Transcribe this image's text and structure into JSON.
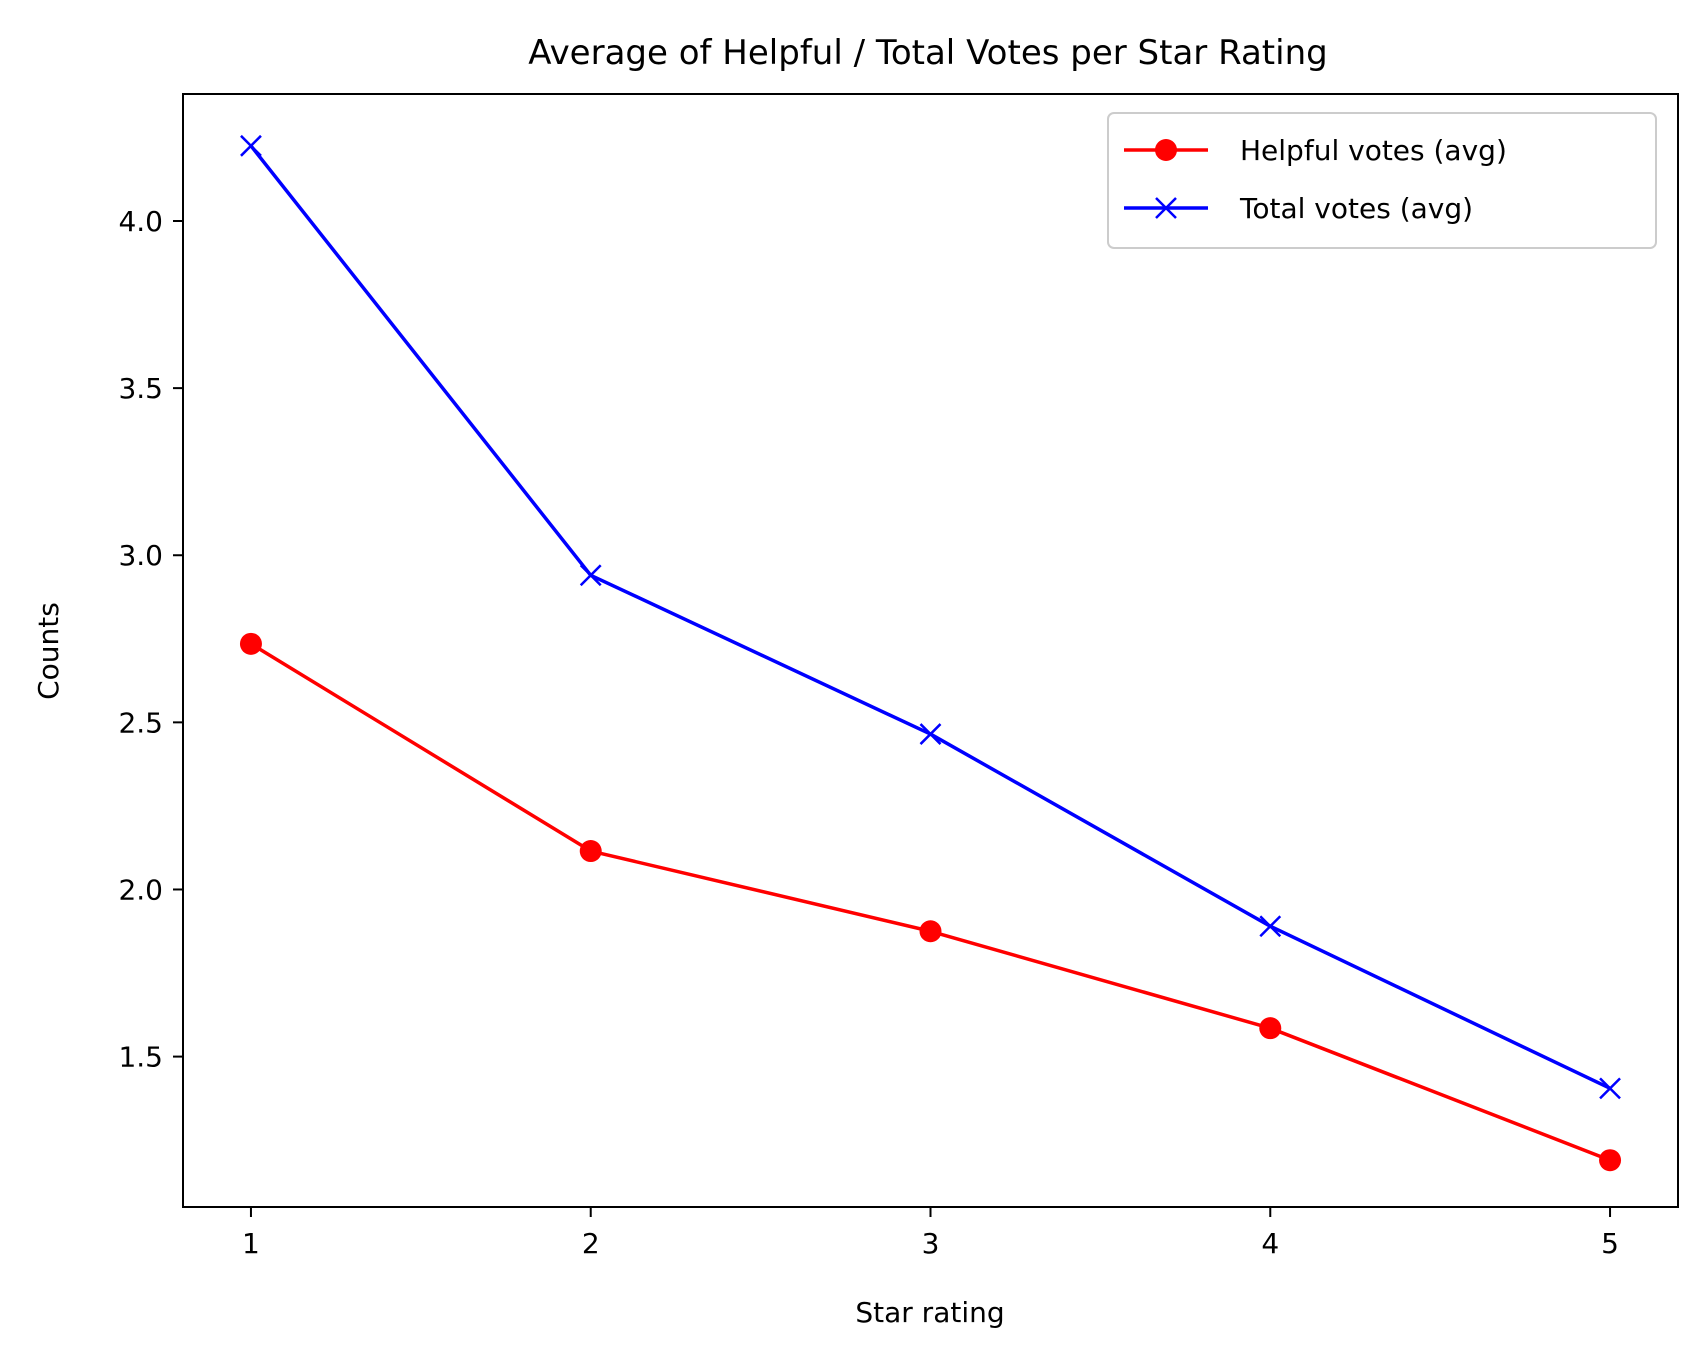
{
  "chart_data": {
    "type": "line",
    "title": "Average of Helpful / Total Votes per Star Rating",
    "xlabel": "Star rating",
    "ylabel": "Counts",
    "x": [
      1,
      2,
      3,
      4,
      5
    ],
    "xticks": [
      "1",
      "2",
      "3",
      "4",
      "5"
    ],
    "yticks": [
      "1.5",
      "2.0",
      "2.5",
      "3.0",
      "3.5",
      "4.0"
    ],
    "xlim": [
      0.8,
      5.2
    ],
    "ylim": [
      1.05,
      4.38
    ],
    "grid": false,
    "legend_position": "top-right",
    "series": [
      {
        "name": "Helpful votes (avg)",
        "values": [
          2.735,
          2.115,
          1.875,
          1.585,
          1.19
        ],
        "color": "#ff0000",
        "marker": "circle"
      },
      {
        "name": "Total votes (avg)",
        "values": [
          4.225,
          2.94,
          2.465,
          1.89,
          1.405
        ],
        "color": "#0000ff",
        "marker": "x"
      }
    ]
  }
}
